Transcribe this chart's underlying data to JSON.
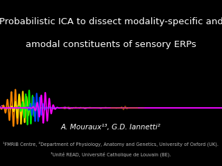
{
  "title_line1": "Probabilistic ICA to dissect modality-specific and",
  "title_line2": "amodal constituents of sensory ERPs",
  "title_bg_color": "#1c2d3e",
  "body_bg_color": "#000000",
  "author_line": "A. Mouraux¹³, G.D. Iannetti²",
  "affil1": "¹FMRIB Centre, ²Department of Physiology, Anatomy and Genetics, University of Oxford (UK).",
  "affil2": "³Unité READ, Université Catholique de Louvain (BE).",
  "title_fontsize": 9.5,
  "author_fontsize": 7.5,
  "affil_fontsize": 4.8,
  "wave_colors": [
    "#ff8800",
    "#ffdd00",
    "#00ee00",
    "#0044ff",
    "#ff00ff"
  ],
  "baseline_color": "#cc44cc"
}
